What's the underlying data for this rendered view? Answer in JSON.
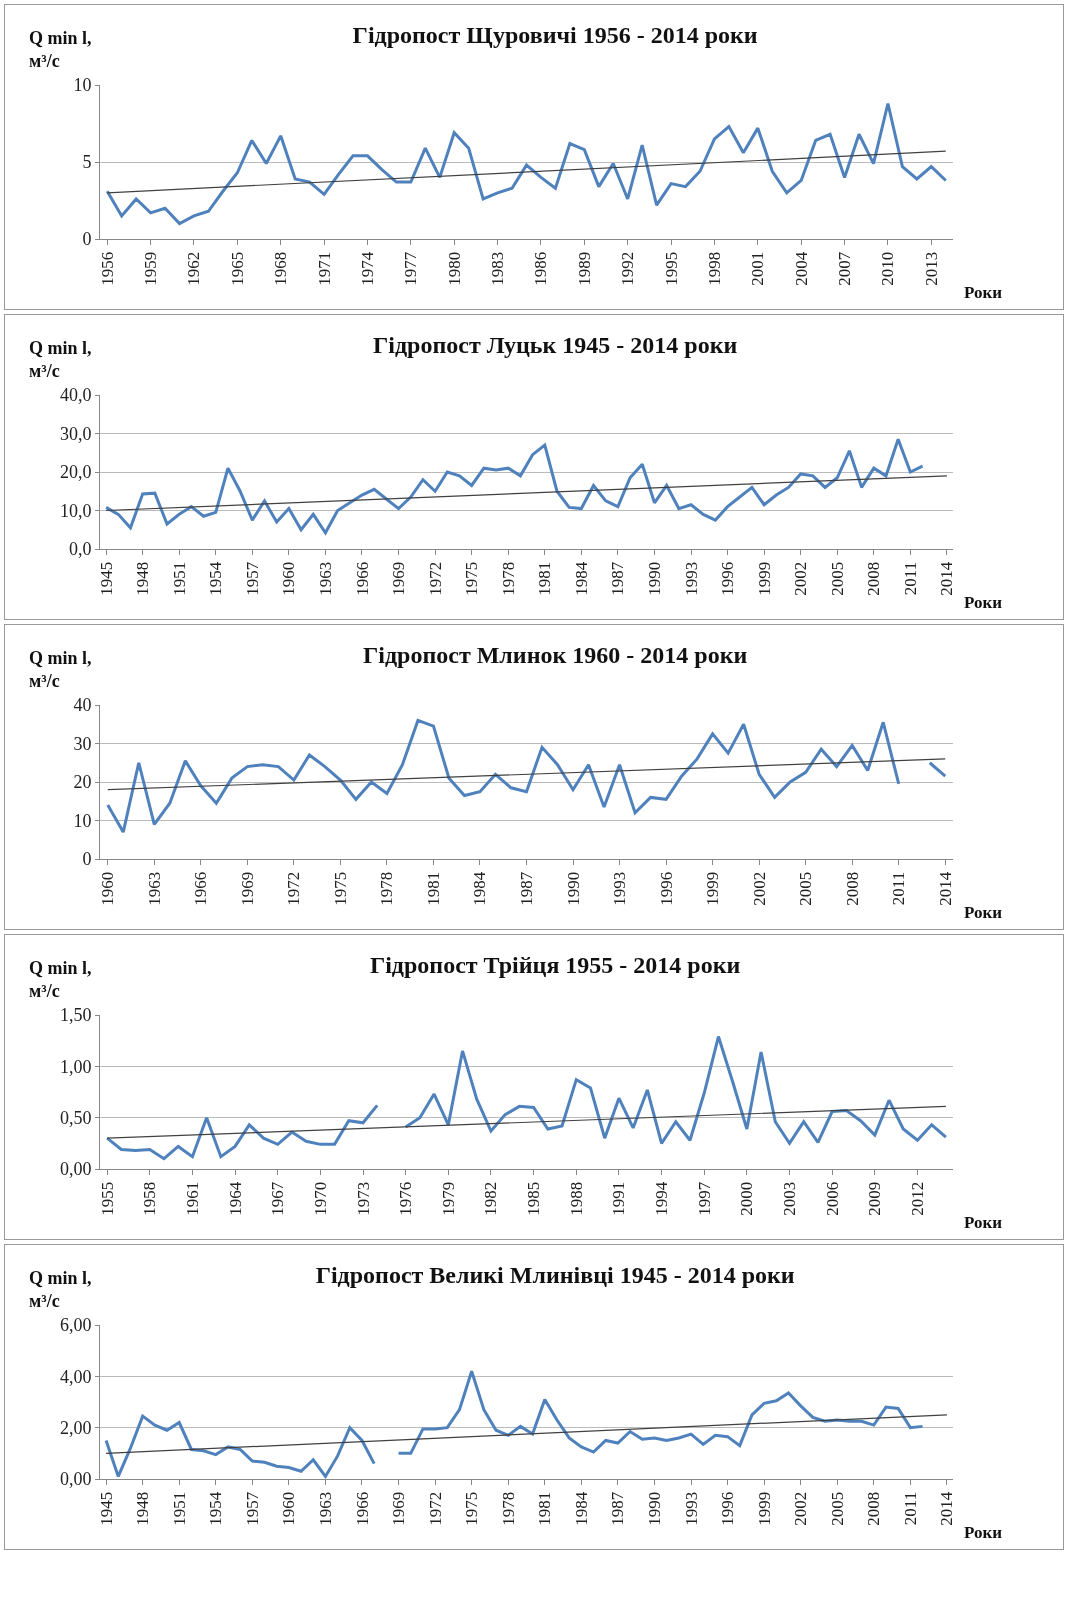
{
  "chart_data": [
    {
      "type": "line",
      "title": "Гідропост Щуровичі 1956 - 2014 роки",
      "xlabel": "Роки",
      "ylabel": "Q min l,\nм³/с",
      "x": [
        1956,
        1957,
        1958,
        1959,
        1960,
        1961,
        1962,
        1963,
        1964,
        1965,
        1966,
        1967,
        1968,
        1969,
        1970,
        1971,
        1972,
        1973,
        1974,
        1975,
        1976,
        1977,
        1978,
        1979,
        1980,
        1981,
        1982,
        1983,
        1984,
        1985,
        1986,
        1987,
        1988,
        1989,
        1990,
        1991,
        1992,
        1993,
        1994,
        1995,
        1996,
        1997,
        1998,
        1999,
        2000,
        2001,
        2002,
        2003,
        2004,
        2005,
        2006,
        2007,
        2008,
        2009,
        2010,
        2011,
        2012,
        2013,
        2014
      ],
      "series": [
        {
          "color": "#4f81bd",
          "values": [
            3.1,
            1.5,
            2.6,
            1.7,
            2.0,
            1.0,
            1.5,
            1.8,
            3.1,
            4.3,
            6.4,
            4.9,
            6.7,
            3.9,
            3.7,
            2.9,
            4.2,
            5.4,
            5.4,
            4.5,
            3.7,
            3.7,
            5.9,
            4.0,
            6.9,
            5.9,
            2.6,
            3.0,
            3.3,
            4.8,
            4.0,
            3.3,
            6.2,
            5.8,
            3.4,
            4.9,
            2.6,
            6.1,
            2.2,
            3.6,
            3.4,
            4.4,
            6.5,
            7.3,
            5.6,
            7.2,
            4.4,
            3.0,
            3.8,
            6.4,
            6.8,
            4.0,
            6.8,
            4.9,
            8.8,
            4.7,
            3.9,
            4.7,
            3.8
          ]
        },
        {
          "type": "line",
          "color": "#404040",
          "x": [
            1956,
            2014
          ],
          "values": [
            3.0,
            5.7
          ]
        }
      ],
      "xlim": [
        1955.5,
        2014.5
      ],
      "xticks": [
        1956,
        1959,
        1962,
        1965,
        1968,
        1971,
        1974,
        1977,
        1980,
        1983,
        1986,
        1989,
        1992,
        1995,
        1998,
        2001,
        2004,
        2007,
        2010,
        2013
      ],
      "ylim": [
        0,
        10
      ],
      "yticks": [
        0,
        5,
        10
      ],
      "grid": "y"
    },
    {
      "type": "line",
      "title": "Гідропост Луцьк 1945 - 2014 роки",
      "xlabel": "Роки",
      "ylabel": "Q min l,\nм³/с",
      "x": [
        1945,
        1946,
        1947,
        1948,
        1949,
        1950,
        1951,
        1952,
        1953,
        1954,
        1955,
        1956,
        1957,
        1958,
        1959,
        1960,
        1961,
        1962,
        1963,
        1964,
        1965,
        1966,
        1967,
        1968,
        1969,
        1970,
        1971,
        1972,
        1973,
        1974,
        1975,
        1976,
        1977,
        1978,
        1979,
        1980,
        1981,
        1982,
        1983,
        1984,
        1985,
        1986,
        1987,
        1988,
        1989,
        1990,
        1991,
        1992,
        1993,
        1994,
        1995,
        1996,
        1997,
        1998,
        1999,
        2000,
        2001,
        2002,
        2003,
        2004,
        2005,
        2006,
        2007,
        2008,
        2009,
        2010,
        2011,
        2012
      ],
      "series": [
        {
          "color": "#4f81bd",
          "values": [
            10.8,
            9.0,
            5.5,
            14.3,
            14.5,
            6.5,
            9.0,
            11.0,
            8.5,
            9.5,
            21.0,
            15.0,
            7.5,
            12.5,
            7.0,
            10.5,
            5.0,
            9.0,
            4.2,
            10.0,
            12.0,
            14.0,
            15.5,
            13.0,
            10.5,
            13.5,
            18.0,
            15.0,
            20.0,
            19.0,
            16.5,
            21.0,
            20.5,
            21.0,
            19.0,
            24.5,
            27.0,
            15.0,
            10.8,
            10.5,
            16.5,
            12.5,
            11.0,
            18.5,
            22.0,
            12.0,
            16.5,
            10.5,
            11.5,
            9.0,
            7.5,
            11.0,
            13.5,
            16.0,
            11.5,
            14.0,
            16.0,
            19.5,
            19.0,
            16.0,
            18.5,
            25.5,
            16.0,
            21.0,
            19.0,
            28.5,
            20.0,
            21.5
          ]
        },
        {
          "type": "line",
          "color": "#404040",
          "x": [
            1945,
            2014
          ],
          "values": [
            10.0,
            19.0
          ]
        }
      ],
      "xlim": [
        1944.5,
        2014.5
      ],
      "xticks": [
        1945,
        1948,
        1951,
        1954,
        1957,
        1960,
        1963,
        1966,
        1969,
        1972,
        1975,
        1978,
        1981,
        1984,
        1987,
        1990,
        1993,
        1996,
        1999,
        2002,
        2005,
        2008,
        2011,
        2014
      ],
      "ylim": [
        0,
        40
      ],
      "yticks": [
        {
          "value": 0,
          "label": "0,0"
        },
        {
          "value": 10,
          "label": "10,0"
        },
        {
          "value": 20,
          "label": "20,0"
        },
        {
          "value": 30,
          "label": "30,0"
        },
        {
          "value": 40,
          "label": "40,0"
        }
      ],
      "grid": "y"
    },
    {
      "type": "line",
      "title": "Гідропост Млинок 1960 - 2014 роки",
      "xlabel": "Роки",
      "ylabel": "Q min l,\nм³/с",
      "x": [
        1960,
        1961,
        1962,
        1963,
        1964,
        1965,
        1966,
        1967,
        1968,
        1969,
        1970,
        1971,
        1972,
        1973,
        1974,
        1975,
        1976,
        1977,
        1978,
        1979,
        1980,
        1981,
        1982,
        1983,
        1984,
        1985,
        1986,
        1987,
        1988,
        1989,
        1990,
        1991,
        1992,
        1993,
        1994,
        1995,
        1996,
        1997,
        1998,
        1999,
        2000,
        2001,
        2002,
        2003,
        2004,
        2005,
        2006,
        2007,
        2008,
        2009,
        2010,
        2011,
        2012,
        2013,
        2014
      ],
      "series": [
        {
          "color": "#4f81bd",
          "values": [
            14,
            7,
            25,
            9,
            14.5,
            25.5,
            19,
            14.5,
            21,
            24,
            24.5,
            24,
            20.5,
            27,
            24,
            20.5,
            15.5,
            20,
            17,
            24.5,
            36,
            34.5,
            21,
            16.5,
            17.5,
            22,
            18.5,
            17.5,
            29,
            24.5,
            18,
            24.5,
            13.5,
            24.5,
            12,
            16,
            15.5,
            21.5,
            26,
            32.5,
            27.5,
            35,
            22,
            16,
            20,
            22.5,
            28.5,
            24,
            29.5,
            23,
            35.5,
            19.5,
            null,
            25,
            21.5
          ]
        },
        {
          "type": "line",
          "color": "#404040",
          "x": [
            1960,
            2014
          ],
          "values": [
            18,
            26
          ]
        }
      ],
      "xlim": [
        1959.5,
        2014.5
      ],
      "xticks": [
        1960,
        1963,
        1966,
        1969,
        1972,
        1975,
        1978,
        1981,
        1984,
        1987,
        1990,
        1993,
        1996,
        1999,
        2002,
        2005,
        2008,
        2011,
        2014
      ],
      "ylim": [
        0,
        40
      ],
      "yticks": [
        0,
        10,
        20,
        30,
        40
      ],
      "grid": "y"
    },
    {
      "type": "line",
      "title": "Гідропост Трійця 1955 - 2014 роки",
      "xlabel": "Роки",
      "ylabel": "Q min l,\nм³/с",
      "x": [
        1955,
        1956,
        1957,
        1958,
        1959,
        1960,
        1961,
        1962,
        1963,
        1964,
        1965,
        1966,
        1967,
        1968,
        1969,
        1970,
        1971,
        1972,
        1973,
        1974,
        1975,
        1976,
        1977,
        1978,
        1979,
        1980,
        1981,
        1982,
        1983,
        1984,
        1985,
        1986,
        1987,
        1988,
        1989,
        1990,
        1991,
        1992,
        1993,
        1994,
        1995,
        1996,
        1997,
        1998,
        1999,
        2000,
        2001,
        2002,
        2003,
        2004,
        2005,
        2006,
        2007,
        2008,
        2009,
        2010,
        2011,
        2012,
        2013,
        2014
      ],
      "series": [
        {
          "color": "#4f81bd",
          "values": [
            0.3,
            0.19,
            0.18,
            0.19,
            0.1,
            0.22,
            0.12,
            0.5,
            0.12,
            0.22,
            0.43,
            0.3,
            0.24,
            0.36,
            0.27,
            0.24,
            0.24,
            0.47,
            0.45,
            0.62,
            null,
            0.41,
            0.5,
            0.73,
            0.43,
            1.15,
            0.68,
            0.37,
            0.53,
            0.61,
            0.6,
            0.39,
            0.42,
            0.87,
            0.79,
            0.3,
            0.69,
            0.4,
            0.77,
            0.25,
            0.46,
            0.28,
            0.74,
            1.29,
            0.85,
            0.39,
            1.14,
            0.46,
            0.25,
            0.46,
            0.26,
            0.56,
            0.57,
            0.47,
            0.33,
            0.67,
            0.39,
            0.28,
            0.43,
            0.31
          ]
        },
        {
          "type": "line",
          "color": "#404040",
          "x": [
            1955,
            2014
          ],
          "values": [
            0.3,
            0.61
          ]
        }
      ],
      "xlim": [
        1954.5,
        2014.5
      ],
      "xticks": [
        1955,
        1958,
        1961,
        1964,
        1967,
        1970,
        1973,
        1976,
        1979,
        1982,
        1985,
        1988,
        1991,
        1994,
        1997,
        2000,
        2003,
        2006,
        2009,
        2012
      ],
      "ylim": [
        0,
        1.5
      ],
      "yticks": [
        {
          "value": 0,
          "label": "0,00"
        },
        {
          "value": 0.5,
          "label": "0,50"
        },
        {
          "value": 1,
          "label": "1,00"
        },
        {
          "value": 1.5,
          "label": "1,50"
        }
      ],
      "grid": "y"
    },
    {
      "type": "line",
      "title": "Гідропост Великі Млинівці 1945 - 2014 роки",
      "xlabel": "Роки",
      "ylabel": "Q min l,\nм³/с",
      "x": [
        1945,
        1946,
        1947,
        1948,
        1949,
        1950,
        1951,
        1952,
        1953,
        1954,
        1955,
        1956,
        1957,
        1958,
        1959,
        1960,
        1961,
        1962,
        1963,
        1964,
        1965,
        1966,
        1967,
        1968,
        1969,
        1970,
        1971,
        1972,
        1973,
        1974,
        1975,
        1976,
        1977,
        1978,
        1979,
        1980,
        1981,
        1982,
        1983,
        1984,
        1985,
        1986,
        1987,
        1988,
        1989,
        1990,
        1991,
        1992,
        1993,
        1994,
        1995,
        1996,
        1997,
        1998,
        1999,
        2000,
        2001,
        2002,
        2003,
        2004,
        2005,
        2006,
        2007,
        2008,
        2009,
        2010,
        2011,
        2012
      ],
      "series": [
        {
          "color": "#4f81bd",
          "values": [
            1.5,
            0.1,
            1.2,
            2.45,
            2.1,
            1.9,
            2.2,
            1.15,
            1.1,
            0.95,
            1.25,
            1.15,
            0.7,
            0.65,
            0.5,
            0.45,
            0.3,
            0.75,
            0.1,
            0.9,
            2.0,
            1.5,
            0.6,
            null,
            1.0,
            1.0,
            1.95,
            1.95,
            2.0,
            2.7,
            4.2,
            2.7,
            1.9,
            1.7,
            2.05,
            1.75,
            3.1,
            2.3,
            1.6,
            1.25,
            1.05,
            1.5,
            1.4,
            1.85,
            1.55,
            1.6,
            1.5,
            1.6,
            1.75,
            1.35,
            1.7,
            1.65,
            1.3,
            2.5,
            2.95,
            3.05,
            3.35,
            2.85,
            2.4,
            2.25,
            2.3,
            2.25,
            2.25,
            2.1,
            2.8,
            2.75,
            2.0,
            2.05
          ]
        },
        {
          "type": "line",
          "color": "#404040",
          "x": [
            1945,
            2014
          ],
          "values": [
            1.0,
            2.5
          ]
        }
      ],
      "xlim": [
        1944.5,
        2014.5
      ],
      "xticks": [
        1945,
        1948,
        1951,
        1954,
        1957,
        1960,
        1963,
        1966,
        1969,
        1972,
        1975,
        1978,
        1981,
        1984,
        1987,
        1990,
        1993,
        1996,
        1999,
        2002,
        2005,
        2008,
        2011,
        2014
      ],
      "ylim": [
        0,
        6
      ],
      "yticks": [
        {
          "value": 0,
          "label": "0,00"
        },
        {
          "value": 2,
          "label": "2,00"
        },
        {
          "value": 4,
          "label": "4,00"
        },
        {
          "value": 6,
          "label": "6,00"
        }
      ],
      "grid": "y"
    }
  ]
}
